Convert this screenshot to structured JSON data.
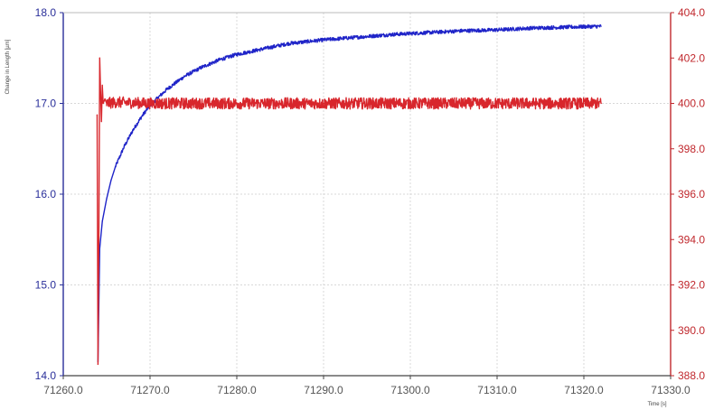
{
  "chart_data": {
    "type": "line",
    "title": "",
    "xlabel": "Time [s]",
    "ylabel_left": "Change in Length [µm]",
    "ylabel_right": "",
    "grid": true,
    "legend": "none",
    "xlim": [
      71260.0,
      71330.0
    ],
    "ylim_left": [
      14.0,
      18.0
    ],
    "ylim_right": [
      388.0,
      404.0
    ],
    "x_ticks": [
      "71260.0",
      "71270.0",
      "71280.0",
      "71290.0",
      "71300.0",
      "71310.0",
      "71320.0",
      "71330.0"
    ],
    "y_left_ticks": [
      "14.0",
      "15.0",
      "16.0",
      "17.0",
      "18.0"
    ],
    "y_right_ticks": [
      "388.0",
      "390.0",
      "392.0",
      "394.0",
      "396.0",
      "398.0",
      "400.0",
      "402.0",
      "404.0"
    ],
    "series": [
      {
        "axis": "left",
        "color": "#1f24c8",
        "x": [
          71264.0,
          71264.2,
          71264.5,
          71265.0,
          71265.5,
          71266.0,
          71267.0,
          71268.0,
          71269.0,
          71270.0,
          71272.0,
          71274.0,
          71276.0,
          71278.0,
          71280.0,
          71283.0,
          71286.0,
          71290.0,
          71294.0,
          71298.0,
          71302.0,
          71306.0,
          71310.0,
          71314.0,
          71318.0,
          71322.0
        ],
        "values": [
          14.15,
          15.4,
          15.7,
          15.95,
          16.15,
          16.3,
          16.52,
          16.7,
          16.85,
          16.98,
          17.16,
          17.3,
          17.4,
          17.48,
          17.54,
          17.6,
          17.66,
          17.7,
          17.73,
          17.76,
          17.78,
          17.8,
          17.81,
          17.83,
          17.84,
          17.85
        ]
      },
      {
        "axis": "right",
        "color": "#d8262c",
        "x": [
          71263.9,
          71264.0,
          71264.1,
          71264.2,
          71264.3,
          71264.4,
          71264.5,
          71264.6,
          71264.8,
          71265.0,
          71266.0,
          71270.0,
          71275.0,
          71280.0,
          71285.0,
          71290.0,
          71295.0,
          71300.0,
          71305.0,
          71310.0,
          71315.0,
          71320.0,
          71322.0
        ],
        "values": [
          399.5,
          388.5,
          394.0,
          402.0,
          400.5,
          399.2,
          400.8,
          400.0,
          400.2,
          400.0,
          400.05,
          400.0,
          400.0,
          400.0,
          400.0,
          400.0,
          400.0,
          400.0,
          400.0,
          400.0,
          400.0,
          400.0,
          400.0
        ]
      }
    ]
  }
}
